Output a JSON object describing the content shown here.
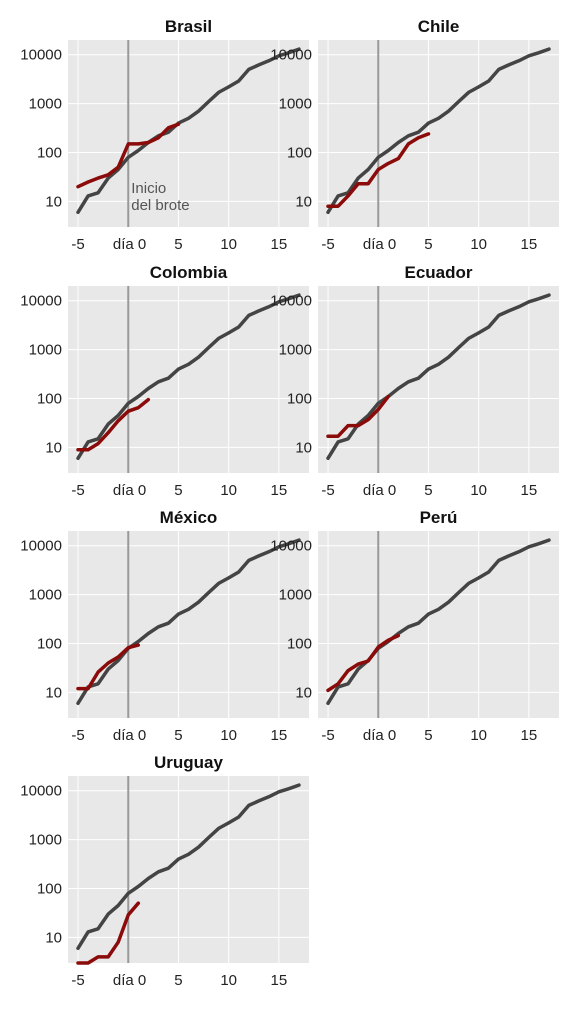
{
  "colors": {
    "panel_bg": "#e8e8e8",
    "grid": "#ffffff",
    "reference_series": "#444444",
    "country_series": "#8b0a0a",
    "outbreak_line": "#999999"
  },
  "annotation": {
    "line1": "Inicio",
    "line2": "del brote"
  },
  "axis": {
    "x_tick_labels": [
      "-5",
      "día 0",
      "5",
      "10",
      "15"
    ],
    "y_tick_labels": [
      "10",
      "100",
      "1000",
      "10000"
    ]
  },
  "chart_data": [
    {
      "type": "line",
      "title": "Brasil",
      "y_scale": "log",
      "xlim": [
        -6,
        18
      ],
      "ylim": [
        3,
        20000
      ],
      "grid": true,
      "series": [
        {
          "role": "reference",
          "points": [
            [
              -5,
              6
            ],
            [
              -4,
              13
            ],
            [
              -3,
              15
            ],
            [
              -2,
              30
            ],
            [
              -1,
              45
            ],
            [
              0,
              80
            ],
            [
              1,
              110
            ],
            [
              2,
              160
            ],
            [
              3,
              220
            ],
            [
              4,
              260
            ],
            [
              5,
              400
            ],
            [
              6,
              500
            ],
            [
              7,
              700
            ],
            [
              8,
              1100
            ],
            [
              9,
              1700
            ],
            [
              10,
              2200
            ],
            [
              11,
              2900
            ],
            [
              12,
              5000
            ],
            [
              13,
              6200
            ],
            [
              14,
              7500
            ],
            [
              15,
              9500
            ],
            [
              16,
              11000
            ],
            [
              17,
              13000
            ]
          ]
        },
        {
          "role": "country",
          "points": [
            [
              -5,
              20
            ],
            [
              -4,
              25
            ],
            [
              -3,
              30
            ],
            [
              -2,
              35
            ],
            [
              -1,
              50
            ],
            [
              0,
              150
            ],
            [
              1,
              150
            ],
            [
              2,
              160
            ],
            [
              3,
              200
            ],
            [
              4,
              320
            ],
            [
              5,
              380
            ]
          ]
        }
      ]
    },
    {
      "type": "line",
      "title": "Chile",
      "y_scale": "log",
      "xlim": [
        -6,
        18
      ],
      "ylim": [
        3,
        20000
      ],
      "grid": true,
      "series": [
        {
          "role": "reference",
          "points": [
            [
              -5,
              6
            ],
            [
              -4,
              13
            ],
            [
              -3,
              15
            ],
            [
              -2,
              30
            ],
            [
              -1,
              45
            ],
            [
              0,
              80
            ],
            [
              1,
              110
            ],
            [
              2,
              160
            ],
            [
              3,
              220
            ],
            [
              4,
              260
            ],
            [
              5,
              400
            ],
            [
              6,
              500
            ],
            [
              7,
              700
            ],
            [
              8,
              1100
            ],
            [
              9,
              1700
            ],
            [
              10,
              2200
            ],
            [
              11,
              2900
            ],
            [
              12,
              5000
            ],
            [
              13,
              6200
            ],
            [
              14,
              7500
            ],
            [
              15,
              9500
            ],
            [
              16,
              11000
            ],
            [
              17,
              13000
            ]
          ]
        },
        {
          "role": "country",
          "points": [
            [
              -5,
              8
            ],
            [
              -4,
              8
            ],
            [
              -3,
              13
            ],
            [
              -2,
              23
            ],
            [
              -1,
              23
            ],
            [
              0,
              45
            ],
            [
              1,
              60
            ],
            [
              2,
              75
            ],
            [
              3,
              150
            ],
            [
              4,
              200
            ],
            [
              5,
              240
            ]
          ]
        }
      ]
    },
    {
      "type": "line",
      "title": "Colombia",
      "y_scale": "log",
      "xlim": [
        -6,
        18
      ],
      "ylim": [
        3,
        20000
      ],
      "grid": true,
      "series": [
        {
          "role": "reference",
          "points": [
            [
              -5,
              6
            ],
            [
              -4,
              13
            ],
            [
              -3,
              15
            ],
            [
              -2,
              30
            ],
            [
              -1,
              45
            ],
            [
              0,
              80
            ],
            [
              1,
              110
            ],
            [
              2,
              160
            ],
            [
              3,
              220
            ],
            [
              4,
              260
            ],
            [
              5,
              400
            ],
            [
              6,
              500
            ],
            [
              7,
              700
            ],
            [
              8,
              1100
            ],
            [
              9,
              1700
            ],
            [
              10,
              2200
            ],
            [
              11,
              2900
            ],
            [
              12,
              5000
            ],
            [
              13,
              6200
            ],
            [
              14,
              7500
            ],
            [
              15,
              9500
            ],
            [
              16,
              11000
            ],
            [
              17,
              13000
            ]
          ]
        },
        {
          "role": "country",
          "points": [
            [
              -5,
              9
            ],
            [
              -4,
              9
            ],
            [
              -3,
              12
            ],
            [
              -2,
              20
            ],
            [
              -1,
              35
            ],
            [
              0,
              55
            ],
            [
              1,
              65
            ],
            [
              2,
              95
            ]
          ]
        }
      ]
    },
    {
      "type": "line",
      "title": "Ecuador",
      "y_scale": "log",
      "xlim": [
        -6,
        18
      ],
      "ylim": [
        3,
        20000
      ],
      "grid": true,
      "series": [
        {
          "role": "reference",
          "points": [
            [
              -5,
              6
            ],
            [
              -4,
              13
            ],
            [
              -3,
              15
            ],
            [
              -2,
              30
            ],
            [
              -1,
              45
            ],
            [
              0,
              80
            ],
            [
              1,
              110
            ],
            [
              2,
              160
            ],
            [
              3,
              220
            ],
            [
              4,
              260
            ],
            [
              5,
              400
            ],
            [
              6,
              500
            ],
            [
              7,
              700
            ],
            [
              8,
              1100
            ],
            [
              9,
              1700
            ],
            [
              10,
              2200
            ],
            [
              11,
              2900
            ],
            [
              12,
              5000
            ],
            [
              13,
              6200
            ],
            [
              14,
              7500
            ],
            [
              15,
              9500
            ],
            [
              16,
              11000
            ],
            [
              17,
              13000
            ]
          ]
        },
        {
          "role": "country",
          "points": [
            [
              -5,
              17
            ],
            [
              -4,
              17
            ],
            [
              -3,
              28
            ],
            [
              -2,
              28
            ],
            [
              -1,
              37
            ],
            [
              0,
              60
            ],
            [
              1,
              110
            ]
          ]
        }
      ]
    },
    {
      "type": "line",
      "title": "México",
      "y_scale": "log",
      "xlim": [
        -6,
        18
      ],
      "ylim": [
        3,
        20000
      ],
      "grid": true,
      "series": [
        {
          "role": "reference",
          "points": [
            [
              -5,
              6
            ],
            [
              -4,
              13
            ],
            [
              -3,
              15
            ],
            [
              -2,
              30
            ],
            [
              -1,
              45
            ],
            [
              0,
              80
            ],
            [
              1,
              110
            ],
            [
              2,
              160
            ],
            [
              3,
              220
            ],
            [
              4,
              260
            ],
            [
              5,
              400
            ],
            [
              6,
              500
            ],
            [
              7,
              700
            ],
            [
              8,
              1100
            ],
            [
              9,
              1700
            ],
            [
              10,
              2200
            ],
            [
              11,
              2900
            ],
            [
              12,
              5000
            ],
            [
              13,
              6200
            ],
            [
              14,
              7500
            ],
            [
              15,
              9500
            ],
            [
              16,
              11000
            ],
            [
              17,
              13000
            ]
          ]
        },
        {
          "role": "country",
          "points": [
            [
              -5,
              12
            ],
            [
              -4,
              12
            ],
            [
              -3,
              26
            ],
            [
              -2,
              40
            ],
            [
              -1,
              53
            ],
            [
              0,
              82
            ],
            [
              1,
              93
            ]
          ]
        }
      ]
    },
    {
      "type": "line",
      "title": "Perú",
      "y_scale": "log",
      "xlim": [
        -6,
        18
      ],
      "ylim": [
        3,
        20000
      ],
      "grid": true,
      "series": [
        {
          "role": "reference",
          "points": [
            [
              -5,
              6
            ],
            [
              -4,
              13
            ],
            [
              -3,
              15
            ],
            [
              -2,
              30
            ],
            [
              -1,
              45
            ],
            [
              0,
              80
            ],
            [
              1,
              110
            ],
            [
              2,
              160
            ],
            [
              3,
              220
            ],
            [
              4,
              260
            ],
            [
              5,
              400
            ],
            [
              6,
              500
            ],
            [
              7,
              700
            ],
            [
              8,
              1100
            ],
            [
              9,
              1700
            ],
            [
              10,
              2200
            ],
            [
              11,
              2900
            ],
            [
              12,
              5000
            ],
            [
              13,
              6200
            ],
            [
              14,
              7500
            ],
            [
              15,
              9500
            ],
            [
              16,
              11000
            ],
            [
              17,
              13000
            ]
          ]
        },
        {
          "role": "country",
          "points": [
            [
              -5,
              11
            ],
            [
              -4,
              15
            ],
            [
              -3,
              28
            ],
            [
              -2,
              38
            ],
            [
              -1,
              44
            ],
            [
              0,
              85
            ],
            [
              1,
              117
            ],
            [
              2,
              145
            ]
          ]
        }
      ]
    },
    {
      "type": "line",
      "title": "Uruguay",
      "y_scale": "log",
      "xlim": [
        -6,
        18
      ],
      "ylim": [
        3,
        20000
      ],
      "grid": true,
      "series": [
        {
          "role": "reference",
          "points": [
            [
              -5,
              6
            ],
            [
              -4,
              13
            ],
            [
              -3,
              15
            ],
            [
              -2,
              30
            ],
            [
              -1,
              45
            ],
            [
              0,
              80
            ],
            [
              1,
              110
            ],
            [
              2,
              160
            ],
            [
              3,
              220
            ],
            [
              4,
              260
            ],
            [
              5,
              400
            ],
            [
              6,
              500
            ],
            [
              7,
              700
            ],
            [
              8,
              1100
            ],
            [
              9,
              1700
            ],
            [
              10,
              2200
            ],
            [
              11,
              2900
            ],
            [
              12,
              5000
            ],
            [
              13,
              6200
            ],
            [
              14,
              7500
            ],
            [
              15,
              9500
            ],
            [
              16,
              11000
            ],
            [
              17,
              13000
            ]
          ]
        },
        {
          "role": "country",
          "points": [
            [
              -5,
              3
            ],
            [
              -4,
              3
            ],
            [
              -3,
              4
            ],
            [
              -2,
              4
            ],
            [
              -1,
              8
            ],
            [
              0,
              29
            ],
            [
              1,
              50
            ]
          ]
        }
      ]
    }
  ]
}
